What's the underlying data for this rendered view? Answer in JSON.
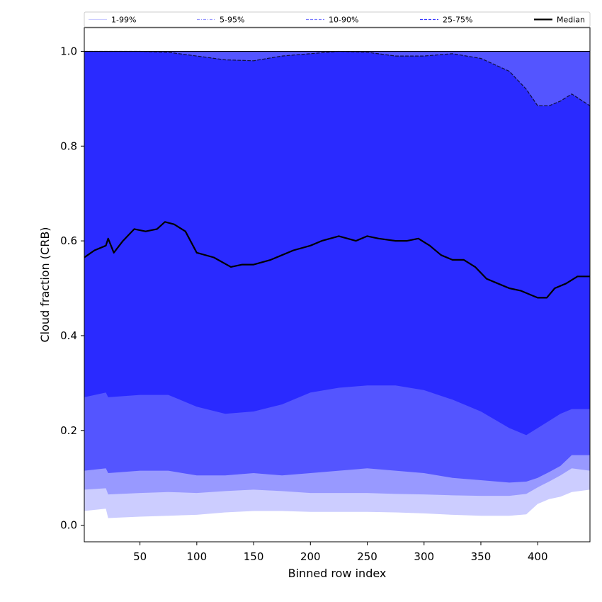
{
  "chart_data": {
    "type": "area",
    "title": "",
    "xlabel": "Binned row index",
    "ylabel": "Cloud fraction (CRB)",
    "xlim": [
      1,
      446
    ],
    "ylim": [
      -0.035,
      1.05
    ],
    "x_ticks": [
      50,
      100,
      150,
      200,
      250,
      300,
      350,
      400
    ],
    "y_ticks": [
      0.0,
      0.2,
      0.4,
      0.6,
      0.8,
      1.0
    ],
    "x_tick_labels": [
      "50",
      "100",
      "150",
      "200",
      "250",
      "300",
      "350",
      "400"
    ],
    "y_tick_labels": [
      "0.0",
      "0.2",
      "0.4",
      "0.6",
      "0.8",
      "1.0"
    ],
    "grid": false,
    "legend_placement": "top, spanning full width above plot",
    "x": [
      1,
      20,
      22,
      50,
      75,
      100,
      125,
      150,
      175,
      200,
      225,
      250,
      275,
      300,
      325,
      350,
      375,
      390,
      400,
      410,
      420,
      430,
      446
    ],
    "bands": [
      {
        "name": "1-99%",
        "color": "#cccdff",
        "lower": [
          0.03,
          0.035,
          0.015,
          0.018,
          0.02,
          0.022,
          0.027,
          0.03,
          0.03,
          0.028,
          0.028,
          0.028,
          0.027,
          0.025,
          0.022,
          0.02,
          0.02,
          0.023,
          0.045,
          0.055,
          0.06,
          0.07,
          0.075
        ],
        "upper": [
          1.0,
          1.0,
          1.0,
          1.0,
          1.0,
          1.0,
          1.0,
          1.0,
          1.0,
          1.0,
          1.0,
          1.0,
          1.0,
          1.0,
          1.0,
          1.0,
          1.0,
          1.0,
          1.0,
          1.0,
          1.0,
          1.0,
          1.0
        ]
      },
      {
        "name": "5-95%",
        "color": "#9899ff",
        "lower": [
          0.075,
          0.078,
          0.065,
          0.068,
          0.07,
          0.068,
          0.072,
          0.075,
          0.072,
          0.068,
          0.068,
          0.068,
          0.066,
          0.065,
          0.063,
          0.062,
          0.062,
          0.066,
          0.08,
          0.092,
          0.105,
          0.12,
          0.115
        ],
        "upper": [
          1.0,
          1.0,
          1.0,
          1.0,
          1.0,
          1.0,
          1.0,
          1.0,
          1.0,
          1.0,
          1.0,
          1.0,
          1.0,
          1.0,
          1.0,
          1.0,
          1.0,
          1.0,
          1.0,
          1.0,
          1.0,
          1.0,
          1.0
        ]
      },
      {
        "name": "10-90%",
        "color": "#5455ff",
        "lower": [
          0.115,
          0.12,
          0.11,
          0.115,
          0.115,
          0.105,
          0.105,
          0.11,
          0.105,
          0.11,
          0.115,
          0.12,
          0.115,
          0.11,
          0.1,
          0.095,
          0.09,
          0.092,
          0.1,
          0.112,
          0.125,
          0.148,
          0.148
        ],
        "upper": [
          1.0,
          1.0,
          1.0,
          1.0,
          1.0,
          1.0,
          1.0,
          1.0,
          1.0,
          1.0,
          1.0,
          1.0,
          1.0,
          1.0,
          1.0,
          1.0,
          1.0,
          1.0,
          1.0,
          1.0,
          1.0,
          1.0,
          1.0
        ]
      },
      {
        "name": "25-75%",
        "color": "#2a2aff",
        "lower": [
          0.27,
          0.28,
          0.27,
          0.275,
          0.275,
          0.25,
          0.235,
          0.24,
          0.255,
          0.28,
          0.29,
          0.295,
          0.295,
          0.285,
          0.265,
          0.24,
          0.205,
          0.19,
          0.205,
          0.22,
          0.235,
          0.245,
          0.245
        ],
        "upper": [
          1.0,
          1.0,
          1.0,
          1.0,
          0.998,
          0.99,
          0.982,
          0.98,
          0.99,
          0.995,
          1.0,
          0.998,
          0.99,
          0.99,
          0.995,
          0.985,
          0.958,
          0.92,
          0.885,
          0.885,
          0.895,
          0.91,
          0.885
        ]
      }
    ],
    "median": {
      "name": "Median",
      "color": "#000000",
      "x": [
        1,
        10,
        20,
        22,
        27,
        35,
        45,
        55,
        65,
        72,
        80,
        90,
        100,
        115,
        130,
        140,
        150,
        165,
        175,
        185,
        200,
        210,
        225,
        240,
        250,
        260,
        275,
        285,
        295,
        305,
        315,
        325,
        335,
        345,
        355,
        365,
        375,
        385,
        395,
        400,
        408,
        415,
        425,
        435,
        446
      ],
      "y": [
        0.565,
        0.58,
        0.59,
        0.605,
        0.575,
        0.6,
        0.625,
        0.62,
        0.625,
        0.64,
        0.635,
        0.62,
        0.575,
        0.565,
        0.545,
        0.55,
        0.55,
        0.56,
        0.57,
        0.58,
        0.59,
        0.6,
        0.61,
        0.6,
        0.61,
        0.605,
        0.6,
        0.6,
        0.605,
        0.59,
        0.57,
        0.56,
        0.56,
        0.545,
        0.52,
        0.51,
        0.5,
        0.495,
        0.485,
        0.48,
        0.48,
        0.5,
        0.51,
        0.525,
        0.525
      ]
    },
    "legend": [
      {
        "label": "1-99%",
        "style": "solid",
        "color": "#cccdff"
      },
      {
        "label": "5-95%",
        "style": "dashdot",
        "color": "#9899ff"
      },
      {
        "label": "10-90%",
        "style": "dashed",
        "color": "#7a7bff"
      },
      {
        "label": "25-75%",
        "style": "dashed",
        "color": "#3a3aff"
      },
      {
        "label": "Median",
        "style": "solid",
        "color": "#000000"
      }
    ]
  }
}
